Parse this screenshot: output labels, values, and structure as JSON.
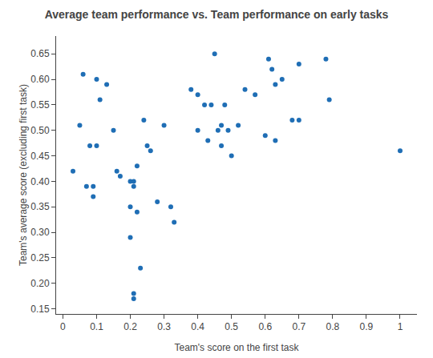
{
  "chart_data": {
    "type": "scatter",
    "title": "Average team performance vs. Team performance on early tasks",
    "xlabel": "Team's score on the first task",
    "ylabel": "Team's average score (excluding first task)",
    "x": [
      0.03,
      0.05,
      0.06,
      0.07,
      0.08,
      0.09,
      0.09,
      0.1,
      0.1,
      0.11,
      0.13,
      0.15,
      0.16,
      0.17,
      0.2,
      0.2,
      0.2,
      0.21,
      0.21,
      0.21,
      0.21,
      0.22,
      0.22,
      0.23,
      0.24,
      0.25,
      0.26,
      0.28,
      0.3,
      0.32,
      0.33,
      0.38,
      0.4,
      0.4,
      0.42,
      0.43,
      0.44,
      0.45,
      0.46,
      0.47,
      0.47,
      0.48,
      0.49,
      0.5,
      0.52,
      0.54,
      0.57,
      0.6,
      0.61,
      0.62,
      0.63,
      0.63,
      0.65,
      0.68,
      0.7,
      0.7,
      0.78,
      0.79,
      1.0
    ],
    "values": [
      0.42,
      0.51,
      0.61,
      0.39,
      0.47,
      0.39,
      0.37,
      0.6,
      0.47,
      0.56,
      0.59,
      0.5,
      0.42,
      0.41,
      0.4,
      0.35,
      0.29,
      0.4,
      0.39,
      0.18,
      0.17,
      0.43,
      0.34,
      0.23,
      0.52,
      0.47,
      0.46,
      0.36,
      0.51,
      0.35,
      0.32,
      0.58,
      0.57,
      0.5,
      0.55,
      0.48,
      0.55,
      0.65,
      0.5,
      0.47,
      0.51,
      0.55,
      0.5,
      0.45,
      0.51,
      0.58,
      0.57,
      0.49,
      0.64,
      0.62,
      0.48,
      0.59,
      0.6,
      0.52,
      0.52,
      0.63,
      0.64,
      0.56,
      0.46
    ],
    "color": "#1f6eb5",
    "marker": "circle",
    "xlim": [
      -0.02,
      1.05
    ],
    "ylim": [
      0.14,
      0.685
    ],
    "xticks": [
      0,
      0.1,
      0.2,
      0.3,
      0.4,
      0.5,
      0.6,
      0.7,
      0.8,
      0.9,
      1
    ],
    "yticks": [
      0.15,
      {
        "value": 0.2,
        "label": "0.20"
      },
      0.25,
      {
        "value": 0.3,
        "label": "0.30"
      },
      0.35,
      {
        "value": 0.4,
        "label": "0.40"
      },
      0.45,
      {
        "value": 0.5,
        "label": "0.50"
      },
      0.55,
      {
        "value": 0.6,
        "label": "0.60"
      },
      0.65
    ],
    "grid": false
  }
}
